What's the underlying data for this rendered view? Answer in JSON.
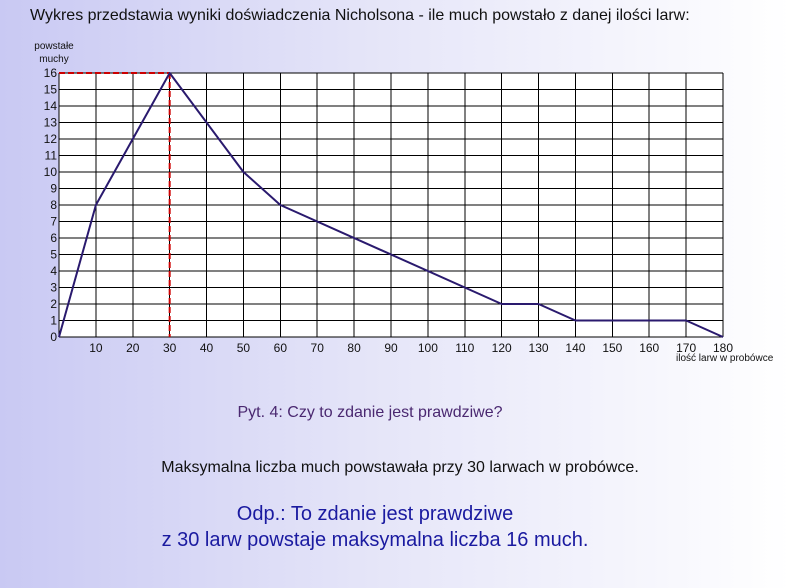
{
  "title": "Wykres przedstawia wyniki doświadczenia Nicholsona - ile much powstało z danej ilości larw:",
  "question": "Pyt. 4: Czy to zdanie jest prawdziwe?",
  "statement": "Maksymalna liczba much powstawała przy 30 larwach w probówce.",
  "answer": {
    "line1": "Odp.: To zdanie jest prawdziwe",
    "line2": "z 30 larw powstaje maksymalna liczba 16 much."
  },
  "colors": {
    "series": "#2a1a6e",
    "highlight": "#cc0000",
    "grid": "#000000"
  },
  "chart_data": {
    "type": "line",
    "title": "",
    "xlabel": "ilość larw w probówce",
    "ylabel_line1": "powstałe",
    "ylabel_line2": "muchy",
    "xlim": [
      0,
      180
    ],
    "ylim": [
      0,
      16
    ],
    "grid": true,
    "xticks": [
      10,
      20,
      30,
      40,
      50,
      60,
      70,
      80,
      90,
      100,
      110,
      120,
      130,
      140,
      150,
      160,
      170,
      180
    ],
    "yticks": [
      0,
      1,
      2,
      3,
      4,
      5,
      6,
      7,
      8,
      9,
      10,
      11,
      12,
      13,
      14,
      15,
      16
    ],
    "x": [
      0,
      10,
      30,
      50,
      60,
      120,
      130,
      140,
      170,
      180
    ],
    "y": [
      0,
      8,
      16,
      10,
      8,
      2,
      2,
      1,
      1,
      0
    ],
    "highlight_point": {
      "x": 30,
      "y": 16
    }
  }
}
